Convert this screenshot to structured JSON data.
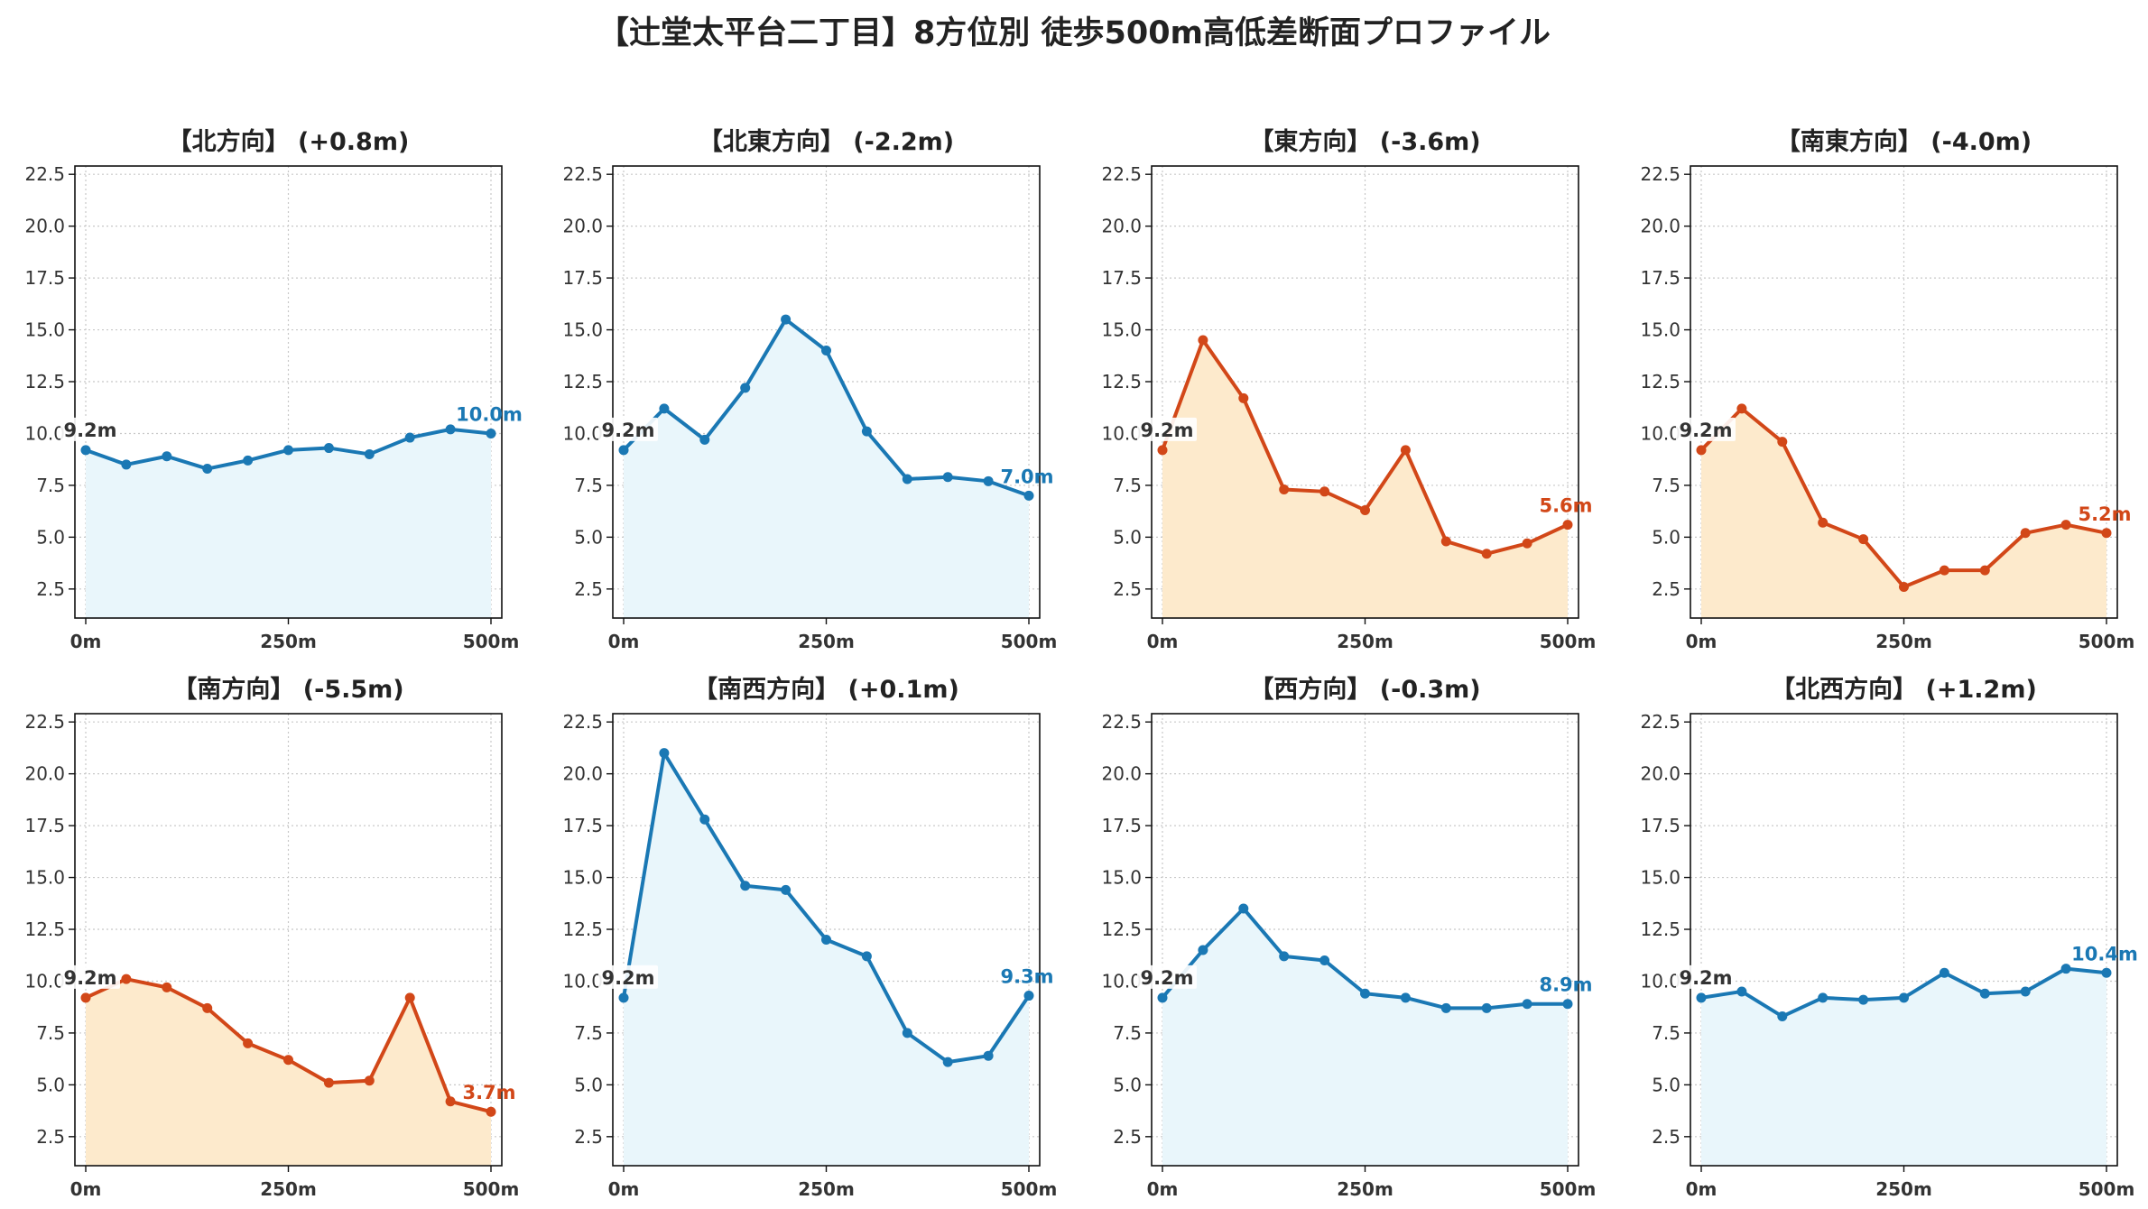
{
  "title": "【辻堂太平台二丁目】8方位別 徒歩500m高低差断面プロファイル",
  "colors": {
    "up_line": "#1a78b4",
    "up_fill": "#e9f6fb",
    "down_line": "#d24718",
    "down_fill": "#fdeacc",
    "start_label": "#333333"
  },
  "chart_data": [
    {
      "type": "line",
      "title": "【北方向】 (+0.8m)",
      "trend": "up",
      "x": [
        0,
        50,
        100,
        150,
        200,
        250,
        300,
        350,
        400,
        450,
        500
      ],
      "values": [
        9.2,
        8.5,
        8.9,
        8.3,
        8.7,
        9.2,
        9.3,
        9.0,
        9.8,
        10.2,
        10.0
      ],
      "start_label": "9.2m",
      "end_label": "10.0m",
      "xticks": [
        "0m",
        "250m",
        "500m"
      ],
      "yticks": [
        "2.5",
        "5.0",
        "7.5",
        "10.0",
        "12.5",
        "15.0",
        "17.5",
        "20.0",
        "22.5"
      ],
      "ylim": [
        1.1,
        22.9
      ],
      "grid": true
    },
    {
      "type": "line",
      "title": "【北東方向】 (-2.2m)",
      "trend": "up",
      "x": [
        0,
        50,
        100,
        150,
        200,
        250,
        300,
        350,
        400,
        450,
        500
      ],
      "values": [
        9.2,
        11.2,
        9.7,
        12.2,
        15.5,
        14.0,
        10.1,
        7.8,
        7.9,
        7.7,
        7.0
      ],
      "start_label": "9.2m",
      "end_label": "7.0m",
      "xticks": [
        "0m",
        "250m",
        "500m"
      ],
      "yticks": [
        "2.5",
        "5.0",
        "7.5",
        "10.0",
        "12.5",
        "15.0",
        "17.5",
        "20.0",
        "22.5"
      ],
      "ylim": [
        1.1,
        22.9
      ],
      "grid": true
    },
    {
      "type": "line",
      "title": "【東方向】 (-3.6m)",
      "trend": "down",
      "x": [
        0,
        50,
        100,
        150,
        200,
        250,
        300,
        350,
        400,
        450,
        500
      ],
      "values": [
        9.2,
        14.5,
        11.7,
        7.3,
        7.2,
        6.3,
        9.2,
        4.8,
        4.2,
        4.7,
        5.6
      ],
      "start_label": "9.2m",
      "end_label": "5.6m",
      "xticks": [
        "0m",
        "250m",
        "500m"
      ],
      "yticks": [
        "2.5",
        "5.0",
        "7.5",
        "10.0",
        "12.5",
        "15.0",
        "17.5",
        "20.0",
        "22.5"
      ],
      "ylim": [
        1.1,
        22.9
      ],
      "grid": true
    },
    {
      "type": "line",
      "title": "【南東方向】 (-4.0m)",
      "trend": "down",
      "x": [
        0,
        50,
        100,
        150,
        200,
        250,
        300,
        350,
        400,
        450,
        500
      ],
      "values": [
        9.2,
        11.2,
        9.6,
        5.7,
        4.9,
        2.6,
        3.4,
        3.4,
        5.2,
        5.6,
        5.2
      ],
      "start_label": "9.2m",
      "end_label": "5.2m",
      "xticks": [
        "0m",
        "250m",
        "500m"
      ],
      "yticks": [
        "2.5",
        "5.0",
        "7.5",
        "10.0",
        "12.5",
        "15.0",
        "17.5",
        "20.0",
        "22.5"
      ],
      "ylim": [
        1.1,
        22.9
      ],
      "grid": true
    },
    {
      "type": "line",
      "title": "【南方向】 (-5.5m)",
      "trend": "down",
      "x": [
        0,
        50,
        100,
        150,
        200,
        250,
        300,
        350,
        400,
        450,
        500
      ],
      "values": [
        9.2,
        10.1,
        9.7,
        8.7,
        7.0,
        6.2,
        5.1,
        5.2,
        9.2,
        4.2,
        3.7
      ],
      "start_label": "9.2m",
      "end_label": "3.7m",
      "xticks": [
        "0m",
        "250m",
        "500m"
      ],
      "yticks": [
        "2.5",
        "5.0",
        "7.5",
        "10.0",
        "12.5",
        "15.0",
        "17.5",
        "20.0",
        "22.5"
      ],
      "ylim": [
        1.1,
        22.9
      ],
      "grid": true
    },
    {
      "type": "line",
      "title": "【南西方向】 (+0.1m)",
      "trend": "up",
      "x": [
        0,
        50,
        100,
        150,
        200,
        250,
        300,
        350,
        400,
        450,
        500
      ],
      "values": [
        9.2,
        21.0,
        17.8,
        14.6,
        14.4,
        12.0,
        11.2,
        7.5,
        6.1,
        6.4,
        9.3
      ],
      "start_label": "9.2m",
      "end_label": "9.3m",
      "xticks": [
        "0m",
        "250m",
        "500m"
      ],
      "yticks": [
        "2.5",
        "5.0",
        "7.5",
        "10.0",
        "12.5",
        "15.0",
        "17.5",
        "20.0",
        "22.5"
      ],
      "ylim": [
        1.1,
        22.9
      ],
      "grid": true
    },
    {
      "type": "line",
      "title": "【西方向】 (-0.3m)",
      "trend": "up",
      "x": [
        0,
        50,
        100,
        150,
        200,
        250,
        300,
        350,
        400,
        450,
        500
      ],
      "values": [
        9.2,
        11.5,
        13.5,
        11.2,
        11.0,
        9.4,
        9.2,
        8.7,
        8.7,
        8.9,
        8.9
      ],
      "start_label": "9.2m",
      "end_label": "8.9m",
      "xticks": [
        "0m",
        "250m",
        "500m"
      ],
      "yticks": [
        "2.5",
        "5.0",
        "7.5",
        "10.0",
        "12.5",
        "15.0",
        "17.5",
        "20.0",
        "22.5"
      ],
      "ylim": [
        1.1,
        22.9
      ],
      "grid": true
    },
    {
      "type": "line",
      "title": "【北西方向】 (+1.2m)",
      "trend": "up",
      "x": [
        0,
        50,
        100,
        150,
        200,
        250,
        300,
        350,
        400,
        450,
        500
      ],
      "values": [
        9.2,
        9.5,
        8.3,
        9.2,
        9.1,
        9.2,
        10.4,
        9.4,
        9.5,
        10.6,
        10.4
      ],
      "start_label": "9.2m",
      "end_label": "10.4m",
      "xticks": [
        "0m",
        "250m",
        "500m"
      ],
      "yticks": [
        "2.5",
        "5.0",
        "7.5",
        "10.0",
        "12.5",
        "15.0",
        "17.5",
        "20.0",
        "22.5"
      ],
      "ylim": [
        1.1,
        22.9
      ],
      "grid": true
    }
  ]
}
